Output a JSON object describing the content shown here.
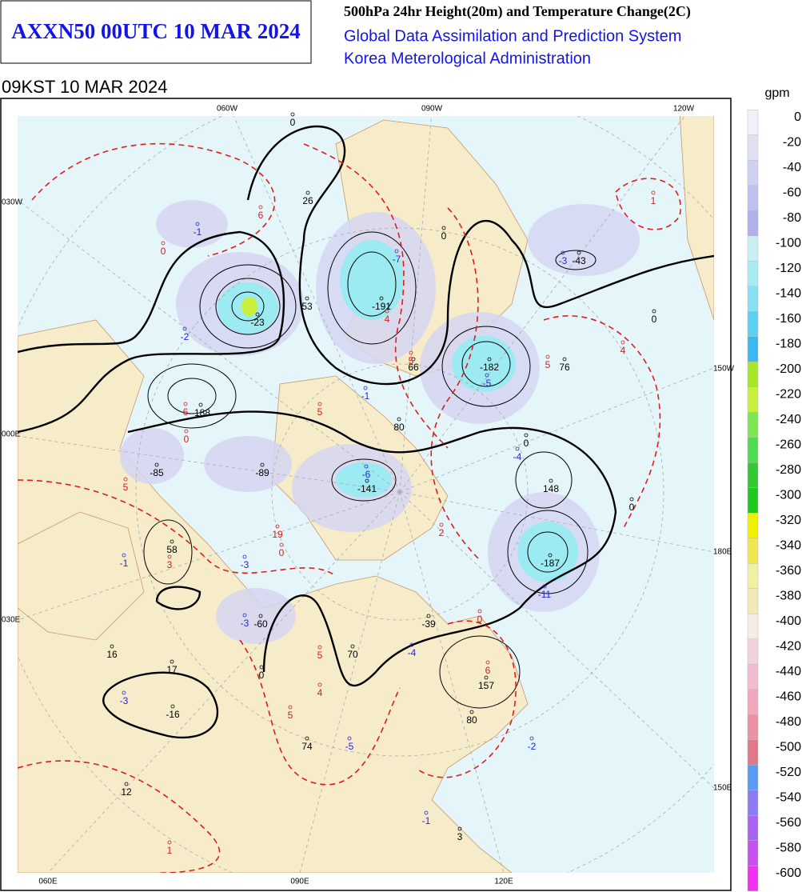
{
  "header": {
    "product": "AXXN50 00UTC 10 MAR 2024",
    "title": "500hPa 24hr Height(20m) and Temperature Change(2C)",
    "system": "Global Data Assimilation and Prediction System",
    "agency": "Korea Meterological Administration",
    "valid_time": "09KST 10 MAR 2024"
  },
  "legend": {
    "unit": "gpm",
    "levels": [
      0,
      -20,
      -40,
      -60,
      -80,
      -100,
      -120,
      -140,
      -160,
      -180,
      -200,
      -220,
      -240,
      -260,
      -280,
      -300,
      -320,
      -340,
      -360,
      -380,
      -400,
      -420,
      -440,
      -460,
      -480,
      -500,
      -520,
      -540,
      -560,
      -580,
      -600
    ],
    "colors": [
      "#f0f0fa",
      "#e0e0f4",
      "#d0d0f2",
      "#c0c0ee",
      "#b0b0ea",
      "#c8f0f4",
      "#a8ecf2",
      "#86e2f2",
      "#5cd0f2",
      "#3cb8f0",
      "#a8e628",
      "#c8f03c",
      "#7ee650",
      "#50dc50",
      "#32c832",
      "#1ec81e",
      "#f0f000",
      "#f0e650",
      "#f0f0a0",
      "#f2e8b8",
      "#f6ece4",
      "#f2d0e0",
      "#f0bcd0",
      "#f0a8bc",
      "#ec90a4",
      "#e0788c",
      "#5a9bf0",
      "#8a7cf0",
      "#a864f0",
      "#c850f0",
      "#f032f0"
    ]
  },
  "map": {
    "top_lon_labels": [
      "060W",
      "090W",
      "120W"
    ],
    "left_lat_labels": [
      "030W",
      "000E",
      "030E"
    ],
    "right_lat_labels": [
      "150W",
      "180E",
      "150E"
    ],
    "bottom_lon_labels": [
      "060E",
      "090E",
      "120E"
    ],
    "height_labels": [
      "26",
      "53",
      "-191",
      "66",
      "-188",
      "80",
      "-85",
      "-89",
      "-141",
      "58",
      "-60",
      "-39",
      "70",
      "16",
      "17",
      "-16",
      "12",
      "74",
      "157",
      "3",
      "-182",
      "76",
      "148",
      "-187",
      "-43",
      "-23",
      "0",
      "0",
      "0",
      "0",
      "80",
      "0",
      "0"
    ],
    "fall_labels": [
      "-1",
      "-2",
      "-7",
      "-1",
      "-3",
      "-6",
      "-5",
      "-4",
      "-3",
      "-3",
      "-1",
      "-4",
      "-3",
      "-5",
      "-2",
      "-1",
      "-11"
    ],
    "rise_labels": [
      "6",
      "1",
      "4",
      "4",
      "5",
      "6",
      "5",
      "5",
      "3",
      "2",
      "0",
      "6",
      "5",
      "5",
      "1",
      "0",
      "0",
      "0",
      "19",
      "5",
      "4"
    ]
  }
}
